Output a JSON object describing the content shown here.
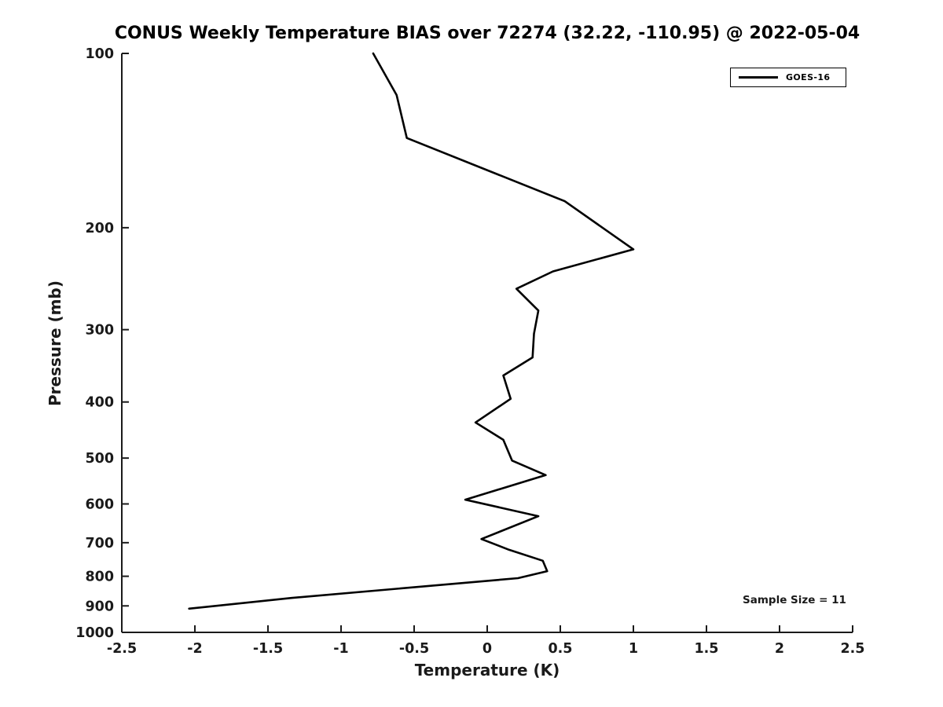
{
  "title": "CONUS Weekly Temperature BIAS over 72274 (32.22, -110.95) @ 2022-05-04",
  "colors": {
    "background": "#ffffff",
    "line": "#000000",
    "axis": "#1a1a1a",
    "text": "#000000"
  },
  "chart_data": {
    "type": "line",
    "title": "CONUS Weekly Temperature BIAS over 72274 (32.22, -110.95) @ 2022-05-04",
    "xlabel": "Temperature (K)",
    "ylabel": "Pressure (mb)",
    "xlim": [
      -2.5,
      2.5
    ],
    "ylim": [
      100,
      1000
    ],
    "y_scale": "log",
    "y_inverted": true,
    "grid": false,
    "x_ticks": [
      -2.5,
      -2,
      -1.5,
      -1,
      -0.5,
      0,
      0.5,
      1,
      1.5,
      2,
      2.5
    ],
    "x_tick_labels": [
      "-2.5",
      "-2",
      "-1.5",
      "-1",
      "-0.5",
      "0",
      "0.5",
      "1",
      "1.5",
      "2",
      "2.5"
    ],
    "y_ticks": [
      100,
      200,
      300,
      400,
      500,
      600,
      700,
      800,
      900,
      1000
    ],
    "legend": {
      "position": "top-right",
      "entries": [
        {
          "label": "GOES-16",
          "color": "#000000",
          "line_width": 3
        }
      ]
    },
    "annotation": "Sample Size = 11",
    "series": [
      {
        "name": "GOES-16",
        "color": "#000000",
        "points": [
          {
            "pressure": 100,
            "bias": -0.78
          },
          {
            "pressure": 118,
            "bias": -0.62
          },
          {
            "pressure": 140,
            "bias": -0.55
          },
          {
            "pressure": 180,
            "bias": 0.53
          },
          {
            "pressure": 218,
            "bias": 1.0
          },
          {
            "pressure": 238,
            "bias": 0.45
          },
          {
            "pressure": 255,
            "bias": 0.2
          },
          {
            "pressure": 278,
            "bias": 0.35
          },
          {
            "pressure": 305,
            "bias": 0.32
          },
          {
            "pressure": 335,
            "bias": 0.31
          },
          {
            "pressure": 360,
            "bias": 0.11
          },
          {
            "pressure": 395,
            "bias": 0.16
          },
          {
            "pressure": 434,
            "bias": -0.08
          },
          {
            "pressure": 465,
            "bias": 0.11
          },
          {
            "pressure": 505,
            "bias": 0.17
          },
          {
            "pressure": 535,
            "bias": 0.4
          },
          {
            "pressure": 590,
            "bias": -0.15
          },
          {
            "pressure": 630,
            "bias": 0.35
          },
          {
            "pressure": 690,
            "bias": -0.04
          },
          {
            "pressure": 720,
            "bias": 0.15
          },
          {
            "pressure": 752,
            "bias": 0.38
          },
          {
            "pressure": 784,
            "bias": 0.41
          },
          {
            "pressure": 806,
            "bias": 0.21
          },
          {
            "pressure": 872,
            "bias": -1.34
          },
          {
            "pressure": 910,
            "bias": -2.04
          }
        ]
      }
    ]
  }
}
